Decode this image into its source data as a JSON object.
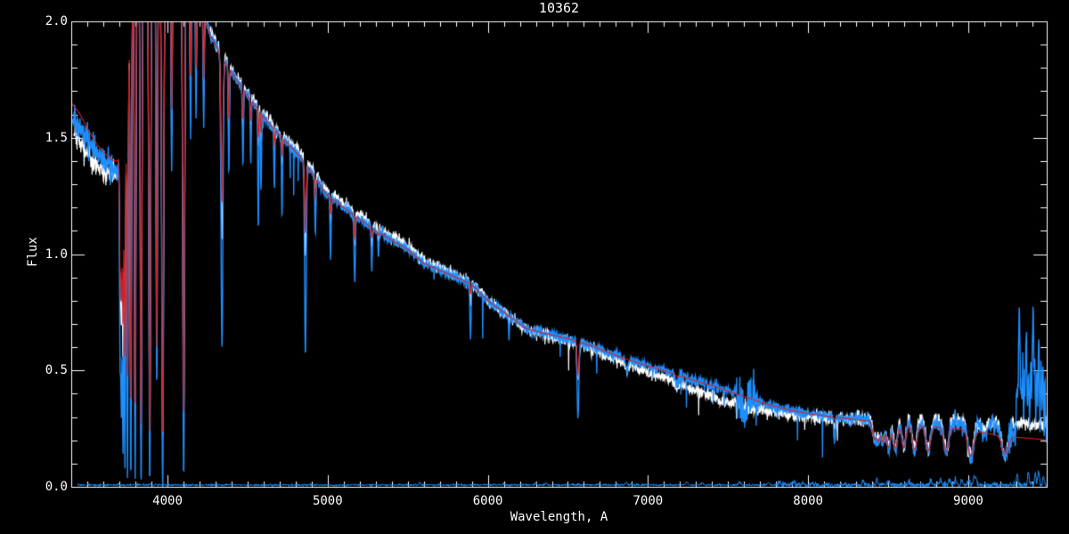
{
  "title": "10362",
  "chart_data": {
    "type": "line",
    "title": "10362",
    "xlabel": "Wavelength, A",
    "ylabel": "Flux",
    "xlim": [
      3399,
      9490
    ],
    "ylim": [
      0.0,
      2.0
    ],
    "background": "#000000",
    "axis_color": "#ffffff",
    "grid": false,
    "legend": "none",
    "x_major_ticks": [
      4000,
      5000,
      6000,
      7000,
      8000,
      9000
    ],
    "x_tick_labels": [
      "4000",
      "5000",
      "6000",
      "7000",
      "8000",
      "9000"
    ],
    "x_minor_step": 100,
    "y_major_ticks": [
      0.0,
      0.5,
      1.0,
      1.5,
      2.0
    ],
    "y_tick_labels": [
      "0.0",
      "0.5",
      "1.0",
      "1.5",
      "2.0"
    ],
    "y_minor_step": 0.1,
    "series": [
      {
        "key": "white",
        "role": "observed spectrum",
        "color": "#ffffff",
        "start": 3415
      },
      {
        "key": "blue",
        "role": "observed spectrum (flux-calibrated)",
        "color": "#1e8fff",
        "start": 3408
      },
      {
        "key": "red",
        "role": "model fit",
        "color": "#d42020",
        "start": 3399
      },
      {
        "key": "sky",
        "role": "sky / error spectrum",
        "color": "#1e8fff",
        "start": 3440
      }
    ],
    "continuum_points": [
      [
        3399,
        1.59
      ],
      [
        3450,
        1.55
      ],
      [
        3500,
        1.49
      ],
      [
        3560,
        1.43
      ],
      [
        3620,
        1.39
      ],
      [
        3660,
        1.37
      ],
      [
        3690,
        1.37
      ],
      [
        3710,
        1.44
      ],
      [
        3730,
        1.6
      ],
      [
        3750,
        1.85
      ],
      [
        3770,
        2.1
      ],
      [
        3800,
        2.26
      ],
      [
        4150,
        2.26
      ],
      [
        4200,
        2.1
      ],
      [
        4260,
        1.95
      ],
      [
        4340,
        1.85
      ],
      [
        4420,
        1.76
      ],
      [
        4500,
        1.68
      ],
      [
        4600,
        1.59
      ],
      [
        4700,
        1.51
      ],
      [
        4800,
        1.44
      ],
      [
        4861,
        1.39
      ],
      [
        4920,
        1.33
      ],
      [
        5000,
        1.25
      ],
      [
        5100,
        1.2
      ],
      [
        5200,
        1.15
      ],
      [
        5300,
        1.1
      ],
      [
        5400,
        1.06
      ],
      [
        5500,
        1.02
      ],
      [
        5600,
        0.96
      ],
      [
        5700,
        0.93
      ],
      [
        5800,
        0.9
      ],
      [
        5900,
        0.87
      ],
      [
        6000,
        0.8
      ],
      [
        6100,
        0.75
      ],
      [
        6240,
        0.68
      ],
      [
        6350,
        0.66
      ],
      [
        6450,
        0.645
      ],
      [
        6563,
        0.625
      ],
      [
        6650,
        0.605
      ],
      [
        6800,
        0.565
      ],
      [
        6950,
        0.53
      ],
      [
        7100,
        0.5
      ],
      [
        7250,
        0.465
      ],
      [
        7400,
        0.435
      ],
      [
        7550,
        0.4
      ],
      [
        7700,
        0.365
      ],
      [
        7850,
        0.335
      ],
      [
        8000,
        0.315
      ],
      [
        8150,
        0.3
      ],
      [
        8300,
        0.29
      ],
      [
        8450,
        0.283
      ],
      [
        8600,
        0.278
      ],
      [
        8750,
        0.272
      ],
      [
        8900,
        0.268
      ],
      [
        9050,
        0.263
      ],
      [
        9200,
        0.262
      ],
      [
        9350,
        0.268
      ],
      [
        9490,
        0.272
      ]
    ],
    "red_offset_points": [
      [
        3399,
        0.06
      ],
      [
        3500,
        0.05
      ],
      [
        3600,
        0.035
      ],
      [
        3690,
        0.03
      ],
      [
        3730,
        0.01
      ],
      [
        3800,
        0
      ],
      [
        8200,
        0
      ],
      [
        8600,
        -0.008
      ],
      [
        8900,
        -0.015
      ],
      [
        9100,
        -0.03
      ],
      [
        9260,
        -0.05
      ],
      [
        9490,
        -0.07
      ]
    ],
    "white_offset_points": [
      [
        3399,
        -0.06
      ],
      [
        3600,
        -0.05
      ],
      [
        3700,
        -0.03
      ],
      [
        3800,
        0
      ],
      [
        4300,
        0.01
      ],
      [
        5000,
        0.02
      ],
      [
        5600,
        0.015
      ],
      [
        6100,
        0
      ],
      [
        6600,
        -0.01
      ],
      [
        7000,
        -0.025
      ],
      [
        7300,
        -0.04
      ],
      [
        7500,
        -0.05
      ],
      [
        7650,
        -0.035
      ],
      [
        7900,
        -0.02
      ],
      [
        8200,
        -0.005
      ],
      [
        8500,
        0.01
      ],
      [
        8800,
        0.02
      ],
      [
        9050,
        0.015
      ],
      [
        9250,
        0.005
      ],
      [
        9490,
        0
      ]
    ],
    "absorption_lines": [
      [
        3704,
        8,
        0.55,
        0.95,
        0.85
      ],
      [
        3712,
        8,
        0.4,
        0.85,
        0.75
      ],
      [
        3722,
        9,
        0.18,
        0.7,
        0.55
      ],
      [
        3734,
        9,
        0.1,
        0.55,
        0.45
      ],
      [
        3750,
        10,
        0.05,
        0.45,
        0.35
      ],
      [
        3771,
        10,
        0.02,
        0.38,
        0.3
      ],
      [
        3798,
        11,
        0.02,
        0.32,
        0.27
      ],
      [
        3835,
        12,
        0.01,
        0.27,
        0.22
      ],
      [
        3889,
        13,
        0.01,
        0.24,
        0.2
      ],
      [
        3933,
        10,
        0.42,
        0.6,
        0.52
      ],
      [
        3970,
        14,
        0.01,
        0.21,
        0.18
      ],
      [
        4026,
        9,
        1.35,
        1.6,
        1.5
      ],
      [
        4101,
        14,
        0.03,
        0.32,
        0.26
      ],
      [
        4144,
        9,
        1.5,
        1.75,
        1.65
      ],
      [
        4178,
        8,
        1.6,
        1.8,
        1.72
      ],
      [
        4226,
        8,
        1.55,
        1.75,
        1.68
      ],
      [
        4340,
        14,
        0.6,
        1.22,
        1.05
      ],
      [
        4383,
        8,
        1.35,
        1.58,
        1.5
      ],
      [
        4471,
        8,
        1.38,
        1.58,
        1.52
      ],
      [
        4520,
        7,
        1.38,
        1.57,
        1.52
      ],
      [
        4567,
        7,
        1.1,
        1.5,
        1.45
      ],
      [
        4584,
        7,
        1.28,
        1.52,
        1.47
      ],
      [
        4667,
        7,
        1.28,
        1.47,
        1.43
      ],
      [
        4715,
        7,
        1.15,
        1.42,
        1.4
      ],
      [
        4861,
        12,
        0.57,
        1.09,
        1.0
      ],
      [
        4923,
        8,
        1.08,
        1.24,
        1.2
      ],
      [
        5018,
        8,
        0.98,
        1.17,
        1.14
      ],
      [
        5169,
        9,
        0.88,
        1.07,
        1.04
      ],
      [
        5276,
        8,
        0.93,
        1.07,
        1.04
      ],
      [
        5317,
        7,
        0.98,
        1.08,
        1.05
      ],
      [
        5892,
        9,
        0.64,
        0.83,
        0.78
      ],
      [
        6132,
        6,
        0.63,
        0.73,
        0.71
      ],
      [
        6563,
        13,
        0.3,
        0.48,
        0.45
      ],
      [
        6870,
        20,
        0.5,
        0.555,
        0.5
      ],
      [
        7180,
        22,
        0.44,
        0.475,
        0.43
      ],
      [
        7600,
        30,
        0.3,
        0.392,
        0.33
      ],
      [
        8165,
        10,
        0.19,
        0.29,
        0.25
      ],
      [
        8413,
        24,
        0.205,
        0.21,
        0.215
      ],
      [
        8438,
        24,
        0.195,
        0.2,
        0.205
      ],
      [
        8467,
        24,
        0.19,
        0.195,
        0.2
      ],
      [
        8502,
        28,
        0.165,
        0.17,
        0.175
      ],
      [
        8545,
        30,
        0.16,
        0.165,
        0.17
      ],
      [
        8598,
        30,
        0.165,
        0.17,
        0.175
      ],
      [
        8665,
        32,
        0.155,
        0.16,
        0.165
      ],
      [
        8750,
        34,
        0.15,
        0.155,
        0.16
      ],
      [
        8863,
        36,
        0.145,
        0.15,
        0.155
      ],
      [
        9015,
        40,
        0.115,
        0.13,
        0.13
      ],
      [
        9100,
        28,
        0.22,
        0.23,
        0.23
      ],
      [
        9229,
        42,
        0.12,
        0.14,
        0.14
      ]
    ],
    "noise_sigma_blue": [
      [
        3399,
        3700,
        0.03
      ],
      [
        3700,
        4300,
        0.012
      ],
      [
        4300,
        7150,
        0.009
      ],
      [
        7150,
        7400,
        0.013
      ],
      [
        7400,
        7550,
        0.009
      ],
      [
        7550,
        7690,
        0.055
      ],
      [
        7690,
        8300,
        0.01
      ],
      [
        8300,
        8800,
        0.013
      ],
      [
        8800,
        9250,
        0.018
      ],
      [
        9250,
        9490,
        0.045
      ]
    ],
    "noise_sigma_white": [
      [
        3399,
        3680,
        0.026
      ],
      [
        3680,
        7540,
        0.013
      ],
      [
        7540,
        7700,
        0.02
      ],
      [
        7700,
        8300,
        0.013
      ],
      [
        8300,
        9490,
        0.016
      ]
    ],
    "blue_spikes": [
      [
        8920,
        0.06,
        3
      ],
      [
        9060,
        0.05,
        3
      ],
      [
        9150,
        0.05,
        3
      ],
      [
        9305,
        0.18,
        4
      ],
      [
        9318,
        0.5,
        4
      ],
      [
        9330,
        0.22,
        3
      ],
      [
        9340,
        0.3,
        3
      ],
      [
        9352,
        0.18,
        3
      ],
      [
        9362,
        0.4,
        4
      ],
      [
        9376,
        0.22,
        3
      ],
      [
        9390,
        0.25,
        3
      ],
      [
        9404,
        0.52,
        4
      ],
      [
        9415,
        0.28,
        3
      ],
      [
        9428,
        0.26,
        3
      ],
      [
        9440,
        0.36,
        3
      ],
      [
        9455,
        0.24,
        3
      ],
      [
        9468,
        0.2,
        3
      ],
      [
        9478,
        0.15,
        3
      ]
    ],
    "sky": {
      "base": 0.008,
      "noise_sigma": [
        [
          3440,
          7800,
          0.0025
        ],
        [
          7800,
          9490,
          0.006
        ]
      ],
      "bumps": [
        [
          5577,
          0.012,
          5
        ],
        [
          6300,
          0.01,
          5
        ],
        [
          6364,
          0.008,
          5
        ],
        [
          6864,
          0.012,
          6
        ],
        [
          7244,
          0.012,
          6
        ],
        [
          7340,
          0.01,
          6
        ],
        [
          7571,
          0.015,
          6
        ],
        [
          7750,
          0.01,
          6
        ],
        [
          7821,
          0.012,
          6
        ],
        [
          7913,
          0.015,
          6
        ],
        [
          8025,
          0.012,
          6
        ],
        [
          8344,
          0.018,
          6
        ],
        [
          8430,
          0.02,
          6
        ],
        [
          8505,
          0.015,
          6
        ],
        [
          8630,
          0.02,
          6
        ],
        [
          8767,
          0.02,
          6
        ],
        [
          8827,
          0.025,
          6
        ],
        [
          8885,
          0.022,
          6
        ],
        [
          8919,
          0.025,
          6
        ],
        [
          8958,
          0.02,
          6
        ],
        [
          9002,
          0.02,
          6
        ],
        [
          9038,
          0.03,
          6
        ],
        [
          9049,
          0.025,
          6
        ],
        [
          9306,
          0.04,
          5
        ],
        [
          9376,
          0.05,
          5
        ],
        [
          9419,
          0.045,
          5
        ],
        [
          9439,
          0.055,
          5
        ],
        [
          9470,
          0.035,
          5
        ]
      ]
    }
  }
}
